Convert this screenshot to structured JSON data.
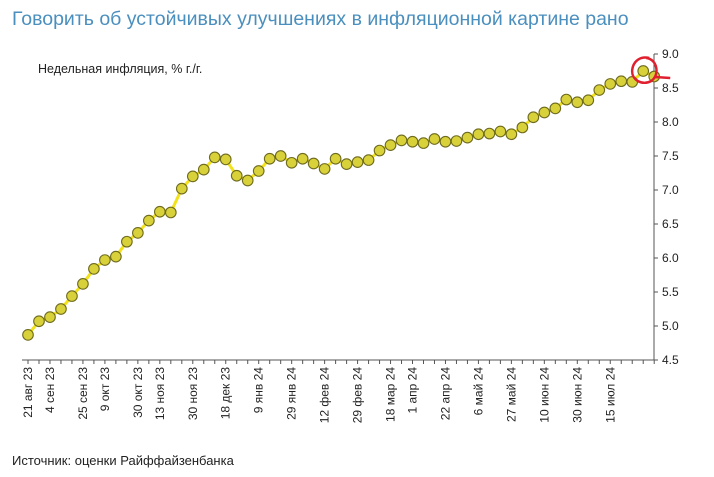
{
  "title": "Говорить об устойчивых улучшениях в инфляционной картине рано",
  "source": "Источник: оценки Райффайзенбанка",
  "colors": {
    "title": "#4a8fbe",
    "line": "#f2e21a",
    "marker_fill": "#d8d13a",
    "marker_edge": "#6e6a1e",
    "highlight": "#e0202e"
  },
  "chart_data": {
    "type": "line",
    "series": [
      {
        "name": "Недельная инфляция, % г./г.",
        "values": [
          4.87,
          5.07,
          5.13,
          5.25,
          5.44,
          5.62,
          5.84,
          5.97,
          6.02,
          6.24,
          6.37,
          6.55,
          6.68,
          6.67,
          7.02,
          7.2,
          7.3,
          7.48,
          7.45,
          7.21,
          7.14,
          7.28,
          7.46,
          7.5,
          7.4,
          7.46,
          7.39,
          7.31,
          7.46,
          7.38,
          7.41,
          7.44,
          7.58,
          7.66,
          7.73,
          7.71,
          7.69,
          7.75,
          7.71,
          7.72,
          7.77,
          7.82,
          7.83,
          7.86,
          7.82,
          7.92,
          8.07,
          8.14,
          8.2,
          8.33,
          8.29,
          8.32,
          8.47,
          8.56,
          8.6,
          8.59,
          8.75,
          8.67
        ]
      }
    ],
    "x_tick_labels": [
      "21 авг 23",
      "4 сен 23",
      "25 сен 23",
      "9 окт 23",
      "30 окт 23",
      "13 ноя 23",
      "30 ноя 23",
      "18 дек 23",
      "9 янв 24",
      "29 янв 24",
      "12 фев 24",
      "29 фев 24",
      "18 мар 24",
      "1 апр 24",
      "22 апр 24",
      "6 май 24",
      "27 май 24",
      "10 июн 24",
      "30 июн 24",
      "15 июл 24"
    ],
    "x_tick_index": [
      0,
      2,
      5,
      7,
      10,
      12,
      15,
      18,
      21,
      24,
      27,
      30,
      33,
      35,
      38,
      41,
      44,
      47,
      50,
      53
    ],
    "yticks": [
      "4.5",
      "5.0",
      "5.5",
      "6.0",
      "6.5",
      "7.0",
      "7.5",
      "8.0",
      "8.5",
      "9.0"
    ],
    "ylim": [
      4.5,
      9.0
    ],
    "y_axis_side": "right",
    "grid": false,
    "highlighted_point_index": 56
  }
}
